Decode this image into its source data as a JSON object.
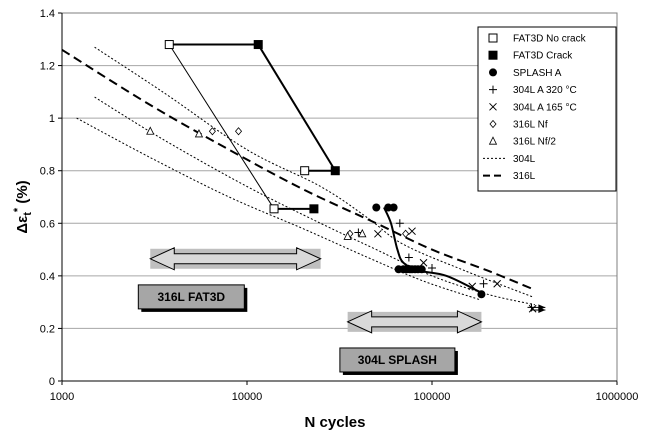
{
  "chart_data": {
    "type": "scatter",
    "xscale": "log",
    "xlim": [
      1000,
      1000000
    ],
    "ylim": [
      0,
      1.4
    ],
    "xticks": [
      "1000",
      "10000",
      "100000",
      "1000000"
    ],
    "yticks": [
      "0",
      "0.2",
      "0.4",
      "0.6",
      "0.8",
      "1",
      "1.2",
      "1.4"
    ],
    "xlabel": "N  cycles",
    "ylabel_main": "Δε",
    "ylabel_sub": "t",
    "ylabel_sup": "*",
    "ylabel_unit": " (%)",
    "grid": "horizontal",
    "legend_position": "top-right",
    "legend": [
      {
        "label": "FAT3D No crack",
        "marker": "open-square"
      },
      {
        "label": "FAT3D Crack",
        "marker": "filled-square"
      },
      {
        "label": "SPLASH A",
        "marker": "filled-circle"
      },
      {
        "label": "304L A 320 °C",
        "marker": "plus"
      },
      {
        "label": "304L A 165 °C",
        "marker": "cross"
      },
      {
        "label": "316L Nf",
        "marker": "open-diamond"
      },
      {
        "label": "316L Nf/2",
        "marker": "open-triangle"
      },
      {
        "label": "304L",
        "marker": "dotted-line"
      },
      {
        "label": "316L",
        "marker": "dashed-line"
      }
    ],
    "series": [
      {
        "name": "FAT3D No crack",
        "points": [
          [
            3800,
            1.28
          ],
          [
            20500,
            0.8
          ],
          [
            14000,
            0.655
          ]
        ]
      },
      {
        "name": "FAT3D Crack",
        "points": [
          [
            11500,
            1.28
          ],
          [
            30000,
            0.8
          ],
          [
            23000,
            0.655
          ]
        ]
      },
      {
        "name": "FAT3D paired lines",
        "points": [
          [
            3800,
            1.28,
            11500,
            1.28
          ],
          [
            20500,
            0.8,
            30000,
            0.8
          ],
          [
            14000,
            0.655,
            23000,
            0.655
          ]
        ]
      },
      {
        "name": "FAT3D thin connectors",
        "points": [
          [
            3800,
            1.28,
            14000,
            0.655
          ],
          [
            11500,
            1.28,
            30000,
            0.8
          ]
        ]
      },
      {
        "name": "SPLASH A",
        "points": [
          [
            50000,
            0.66
          ],
          [
            58000,
            0.66
          ],
          [
            62000,
            0.66
          ],
          [
            66000,
            0.425
          ],
          [
            70000,
            0.425
          ],
          [
            73000,
            0.425
          ],
          [
            76000,
            0.425
          ],
          [
            78000,
            0.425
          ],
          [
            81000,
            0.425
          ],
          [
            84000,
            0.425
          ],
          [
            88000,
            0.425
          ],
          [
            185000,
            0.33
          ]
        ]
      },
      {
        "name": "304L A 320 °C",
        "points": [
          [
            40000,
            0.565
          ],
          [
            67000,
            0.6
          ],
          [
            75000,
            0.47
          ],
          [
            100000,
            0.43
          ],
          [
            190000,
            0.37
          ],
          [
            345000,
            0.28
          ]
        ]
      },
      {
        "name": "304L A 165 °C",
        "points": [
          [
            51000,
            0.56
          ],
          [
            78000,
            0.57
          ],
          [
            90000,
            0.45
          ],
          [
            165000,
            0.36
          ],
          [
            225000,
            0.37
          ],
          [
            350000,
            0.275
          ]
        ]
      },
      {
        "name": "316L Nf",
        "points": [
          [
            6500,
            0.95
          ],
          [
            9000,
            0.95
          ],
          [
            36000,
            0.56
          ],
          [
            72000,
            0.56
          ]
        ]
      },
      {
        "name": "316L Nf/2",
        "points": [
          [
            3000,
            0.95
          ],
          [
            5500,
            0.94
          ],
          [
            35000,
            0.55
          ],
          [
            42000,
            0.56
          ]
        ]
      },
      {
        "name": "304L",
        "style": "dotted",
        "curves": [
          [
            [
              1500,
              1.27
            ],
            [
              3500,
              1.1
            ],
            [
              10000,
              0.88
            ],
            [
              25000,
              0.74
            ],
            [
              45000,
              0.62
            ],
            [
              70000,
              0.52
            ],
            [
              150000,
              0.42
            ],
            [
              350000,
              0.32
            ]
          ],
          [
            [
              1500,
              1.08
            ],
            [
              3500,
              0.92
            ],
            [
              10000,
              0.74
            ],
            [
              25000,
              0.6
            ],
            [
              50000,
              0.5
            ],
            [
              100000,
              0.4
            ],
            [
              200000,
              0.33
            ],
            [
              360000,
              0.29
            ]
          ],
          [
            [
              1200,
              1.0
            ],
            [
              3000,
              0.85
            ],
            [
              8000,
              0.7
            ],
            [
              20000,
              0.58
            ],
            [
              45000,
              0.47
            ],
            [
              90000,
              0.38
            ],
            [
              180000,
              0.31
            ]
          ]
        ]
      },
      {
        "name": "316L",
        "style": "dashed",
        "curves": [
          [
            [
              1000,
              1.26
            ],
            [
              3000,
              1.05
            ],
            [
              8000,
              0.88
            ],
            [
              20000,
              0.73
            ],
            [
              50000,
              0.6
            ],
            [
              100000,
              0.5
            ],
            [
              200000,
              0.42
            ],
            [
              350000,
              0.35
            ]
          ]
        ]
      },
      {
        "name": "SPLASH trend",
        "style": "solid",
        "curves": [
          [
            [
              55000,
              0.66
            ],
            [
              60000,
              0.6
            ],
            [
              65000,
              0.5
            ],
            [
              70000,
              0.45
            ],
            [
              85000,
              0.42
            ],
            [
              120000,
              0.4
            ],
            [
              180000,
              0.34
            ]
          ]
        ]
      }
    ],
    "annotations": [
      {
        "label": "316L FAT3D",
        "arrow_x": [
          3000,
          25000
        ],
        "arrow_y": 0.465,
        "box_xy": [
          5000,
          0.32
        ]
      },
      {
        "label": "304L SPLASH",
        "arrow_x": [
          35000,
          185000
        ],
        "arrow_y": 0.225,
        "box_xy": [
          65000,
          0.08
        ]
      }
    ],
    "outside_arrows": {
      "x": [
        340000,
        410000
      ],
      "y": [
        0.28,
        0.27
      ]
    }
  }
}
